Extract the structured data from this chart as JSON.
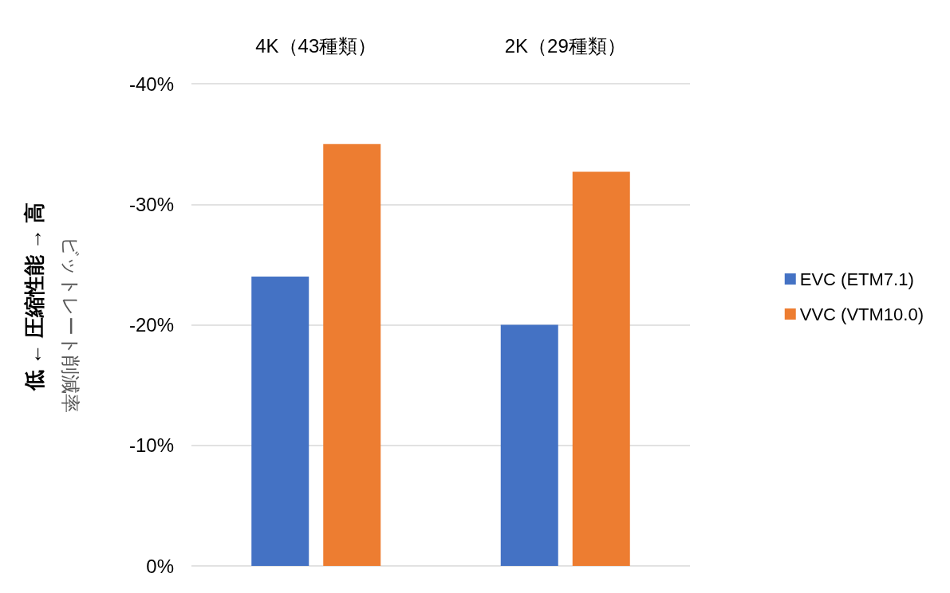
{
  "chart_data": {
    "type": "bar",
    "categories": [
      "4K（43種類）",
      "2K（29種類）"
    ],
    "series": [
      {
        "name": "EVC (ETM7.1)",
        "color": "#4472c4",
        "values": [
          -24,
          -20
        ]
      },
      {
        "name": "VVC (VTM10.0)",
        "color": "#ed7d31",
        "values": [
          -35,
          -32.7
        ]
      }
    ],
    "ylabel": "ビットレート削減率",
    "annotations": [
      "低 ← 圧縮性能 → 高"
    ],
    "ylim": [
      0,
      -40
    ],
    "yticks": [
      {
        "value": 0,
        "label": "0%"
      },
      {
        "value": -10,
        "label": "-10%"
      },
      {
        "value": -20,
        "label": "-20%"
      },
      {
        "value": -30,
        "label": "-30%"
      },
      {
        "value": -40,
        "label": "-40%"
      }
    ],
    "grid": "y",
    "legend": "right"
  }
}
